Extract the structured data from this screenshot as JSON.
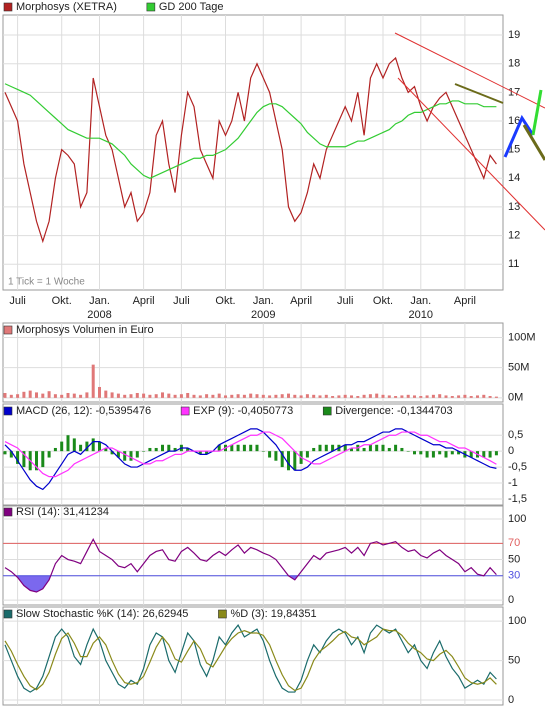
{
  "chart_data": [
    {
      "type": "line",
      "note": "1 Tick = 1 Woche",
      "categories": [
        null,
        null,
        "Juli",
        null,
        null,
        null,
        null,
        null,
        null,
        "Okt.",
        null,
        null,
        null,
        null,
        null,
        "Jan.",
        null,
        null,
        null,
        null,
        null,
        null,
        "April",
        null,
        null,
        null,
        null,
        null,
        "Juli",
        null,
        null,
        null,
        null,
        null,
        null,
        "Okt.",
        null,
        null,
        null,
        null,
        null,
        "Jan.",
        null,
        null,
        null,
        null,
        null,
        "April",
        null,
        null,
        null,
        null,
        null,
        null,
        "Juli",
        null,
        null,
        null,
        null,
        null,
        "Okt.",
        null,
        null,
        null,
        null,
        null,
        "Jan.",
        null,
        null,
        null,
        null,
        null,
        null,
        "April",
        null,
        null,
        null,
        null,
        null
      ],
      "year_labels": [
        "2008",
        "2009",
        "2010"
      ],
      "series": [
        {
          "name": "Morphosys (XETRA)",
          "color": "#b22222",
          "type": "line",
          "values": [
            17.0,
            16.5,
            16.0,
            14.5,
            13.5,
            12.5,
            11.8,
            12.5,
            14.0,
            15.0,
            14.8,
            14.5,
            13.0,
            13.5,
            17.5,
            16.5,
            15.5,
            15.0,
            14.0,
            13.0,
            13.5,
            12.5,
            12.8,
            13.5,
            15.5,
            16.0,
            14.5,
            13.5,
            15.5,
            17.0,
            16.5,
            15.0,
            14.5,
            14.0,
            16.0,
            15.5,
            16.0,
            17.0,
            16.0,
            17.5,
            18.0,
            17.5,
            17.0,
            16.0,
            15.0,
            13.0,
            12.5,
            12.8,
            13.5,
            14.5,
            14.0,
            15.0,
            15.5,
            16.0,
            16.5,
            16.0,
            17.0,
            15.5,
            17.5,
            18.0,
            17.5,
            18.0,
            18.2,
            17.5,
            17.0,
            17.2,
            16.5,
            16.0,
            16.5,
            16.8,
            17.0,
            16.5,
            16.0,
            15.5,
            15.0,
            14.5,
            14.0,
            14.8,
            14.5
          ]
        },
        {
          "name": "GD 200 Tage",
          "color": "#33cc33",
          "type": "line",
          "values": [
            17.3,
            17.2,
            17.1,
            17.0,
            16.9,
            16.7,
            16.5,
            16.3,
            16.1,
            15.9,
            15.7,
            15.6,
            15.5,
            15.4,
            15.4,
            15.4,
            15.3,
            15.2,
            15.0,
            14.8,
            14.5,
            14.3,
            14.1,
            14.0,
            14.1,
            14.2,
            14.3,
            14.4,
            14.5,
            14.6,
            14.7,
            14.7,
            14.8,
            14.8,
            14.9,
            15.0,
            15.2,
            15.4,
            15.7,
            16.0,
            16.3,
            16.5,
            16.6,
            16.6,
            16.5,
            16.3,
            16.1,
            15.9,
            15.6,
            15.4,
            15.2,
            15.1,
            15.1,
            15.1,
            15.1,
            15.2,
            15.3,
            15.3,
            15.4,
            15.5,
            15.6,
            15.7,
            15.9,
            16.0,
            16.2,
            16.3,
            16.3,
            16.4,
            16.5,
            16.6,
            16.6,
            16.7,
            16.7,
            16.6,
            16.6,
            16.6,
            16.5,
            16.5,
            16.5
          ]
        }
      ],
      "ylim": [
        10.1,
        19.7
      ],
      "yticks": [
        11,
        12,
        13,
        14,
        15,
        16,
        17,
        18,
        19
      ],
      "grid": true
    },
    {
      "type": "bar",
      "series": [
        {
          "name": "Morphosys Volumen in Euro",
          "color": "#e07878",
          "type": "bar",
          "values": [
            8,
            5,
            6,
            10,
            12,
            9,
            7,
            11,
            6,
            5,
            8,
            7,
            5,
            9,
            55,
            18,
            12,
            9,
            7,
            5,
            6,
            8,
            7,
            5,
            6,
            9,
            7,
            5,
            6,
            8,
            5,
            4,
            6,
            5,
            7,
            4,
            5,
            6,
            5,
            7,
            6,
            5,
            4,
            5,
            6,
            7,
            5,
            4,
            6,
            5,
            4,
            5,
            3,
            4,
            5,
            4,
            3,
            5,
            6,
            7,
            5,
            4,
            3,
            4,
            5,
            4,
            3,
            4,
            5,
            6,
            4,
            3,
            4,
            5,
            3,
            4,
            5,
            3,
            2
          ]
        }
      ],
      "ylim": [
        -6.9,
        124
      ],
      "yticks": [
        {
          "value": 0,
          "label": "0M"
        },
        {
          "value": 50,
          "label": "50M"
        },
        {
          "value": 100,
          "label": "100M"
        }
      ],
      "grid": true
    },
    {
      "type": "line",
      "series": [
        {
          "name": "MACD (26, 12): -0,5395476",
          "color": "#0000cc",
          "type": "line",
          "values": [
            0.2,
            0.0,
            -0.3,
            -0.6,
            -0.9,
            -1.1,
            -1.2,
            -1.0,
            -0.7,
            -0.4,
            -0.1,
            0.0,
            -0.1,
            0.1,
            0.3,
            0.3,
            0.2,
            0.0,
            -0.2,
            -0.4,
            -0.5,
            -0.5,
            -0.4,
            -0.3,
            -0.2,
            -0.1,
            0.0,
            0.0,
            0.1,
            0.1,
            0.0,
            -0.1,
            -0.1,
            0.0,
            0.2,
            0.3,
            0.4,
            0.5,
            0.6,
            0.7,
            0.7,
            0.6,
            0.4,
            0.2,
            -0.1,
            -0.4,
            -0.6,
            -0.6,
            -0.5,
            -0.3,
            -0.2,
            -0.1,
            0.0,
            0.1,
            0.2,
            0.2,
            0.3,
            0.3,
            0.4,
            0.5,
            0.6,
            0.6,
            0.7,
            0.7,
            0.6,
            0.5,
            0.4,
            0.3,
            0.2,
            0.2,
            0.1,
            0.1,
            0.0,
            -0.1,
            -0.2,
            -0.3,
            -0.4,
            -0.5,
            -0.54
          ]
        },
        {
          "name": "EXP (9): -0,4050773",
          "color": "#ff33ff",
          "type": "line",
          "values": [
            0.3,
            0.2,
            0.1,
            -0.1,
            -0.3,
            -0.5,
            -0.7,
            -0.8,
            -0.8,
            -0.7,
            -0.6,
            -0.4,
            -0.3,
            -0.2,
            -0.1,
            0.0,
            0.1,
            0.1,
            0.0,
            -0.1,
            -0.2,
            -0.3,
            -0.4,
            -0.4,
            -0.3,
            -0.3,
            -0.2,
            -0.1,
            -0.1,
            0.0,
            0.0,
            0.0,
            0.0,
            0.0,
            0.0,
            0.1,
            0.2,
            0.3,
            0.4,
            0.5,
            0.5,
            0.6,
            0.6,
            0.5,
            0.4,
            0.2,
            0.0,
            -0.2,
            -0.3,
            -0.4,
            -0.4,
            -0.3,
            -0.2,
            -0.1,
            0.0,
            0.1,
            0.1,
            0.2,
            0.2,
            0.3,
            0.4,
            0.5,
            0.5,
            0.6,
            0.6,
            0.6,
            0.5,
            0.5,
            0.4,
            0.3,
            0.3,
            0.2,
            0.1,
            0.1,
            0.0,
            -0.1,
            -0.2,
            -0.3,
            -0.41
          ]
        },
        {
          "name": "Divergence: -0,1344703",
          "color": "#1a8a1a",
          "type": "bar",
          "values": [
            -0.1,
            -0.2,
            -0.4,
            -0.5,
            -0.6,
            -0.6,
            -0.5,
            -0.2,
            0.1,
            0.3,
            0.5,
            0.4,
            0.2,
            0.3,
            0.4,
            0.3,
            0.1,
            -0.1,
            -0.2,
            -0.3,
            -0.3,
            -0.2,
            0.0,
            0.1,
            0.1,
            0.2,
            0.2,
            0.1,
            0.2,
            0.1,
            0.0,
            -0.1,
            -0.1,
            0.0,
            0.2,
            0.2,
            0.2,
            0.2,
            0.2,
            0.2,
            0.2,
            0.0,
            -0.2,
            -0.3,
            -0.5,
            -0.6,
            -0.6,
            -0.4,
            -0.2,
            0.1,
            0.2,
            0.2,
            0.2,
            0.2,
            0.2,
            0.1,
            0.2,
            0.1,
            0.2,
            0.2,
            0.2,
            0.1,
            0.2,
            0.1,
            0.0,
            -0.1,
            -0.1,
            -0.2,
            -0.2,
            -0.1,
            -0.2,
            -0.1,
            -0.1,
            -0.2,
            -0.2,
            -0.2,
            -0.2,
            -0.2,
            -0.13
          ]
        }
      ],
      "ylim": [
        -1.69,
        1.48
      ],
      "yticks": [
        {
          "value": -1.5,
          "label": "-1,5"
        },
        -1,
        {
          "value": -0.5,
          "label": "-0,5"
        },
        0,
        {
          "value": 0.5,
          "label": "0,5"
        }
      ],
      "grid": true
    },
    {
      "type": "line",
      "series": [
        {
          "name": "RSI (14): 31,41234",
          "color": "#800080",
          "type": "line",
          "values": [
            40,
            35,
            28,
            18,
            12,
            10,
            14,
            25,
            45,
            55,
            50,
            48,
            45,
            60,
            75,
            60,
            55,
            50,
            42,
            40,
            45,
            35,
            45,
            55,
            60,
            62,
            50,
            48,
            60,
            65,
            58,
            50,
            48,
            55,
            60,
            55,
            62,
            68,
            58,
            65,
            62,
            58,
            55,
            50,
            40,
            30,
            25,
            35,
            45,
            55,
            50,
            58,
            60,
            62,
            65,
            58,
            65,
            55,
            70,
            72,
            68,
            70,
            72,
            65,
            60,
            62,
            55,
            52,
            58,
            62,
            55,
            50,
            45,
            35,
            40,
            32,
            30,
            40,
            31.41234
          ]
        }
      ],
      "reference_lines": [
        {
          "value": 70,
          "color": "#e06060"
        },
        {
          "value": 30,
          "color": "#5050e0",
          "fill": "#7b68ee"
        }
      ],
      "ylim": [
        -6,
        116
      ],
      "yticks": [
        0,
        30,
        50,
        70,
        100
      ],
      "grid": true
    },
    {
      "type": "line",
      "series": [
        {
          "name": "Slow Stochastic %K (14): 26,62945",
          "color": "#1a6b6b",
          "type": "line",
          "values": [
            70,
            50,
            30,
            15,
            10,
            15,
            30,
            55,
            80,
            90,
            80,
            55,
            45,
            70,
            90,
            75,
            50,
            35,
            20,
            15,
            25,
            20,
            40,
            70,
            85,
            80,
            50,
            35,
            60,
            85,
            75,
            45,
            30,
            50,
            80,
            70,
            85,
            95,
            80,
            85,
            90,
            75,
            50,
            30,
            15,
            10,
            10,
            25,
            50,
            70,
            60,
            75,
            85,
            90,
            85,
            70,
            80,
            60,
            85,
            95,
            90,
            85,
            90,
            75,
            60,
            70,
            50,
            40,
            60,
            75,
            55,
            40,
            30,
            15,
            20,
            25,
            20,
            35,
            26.62945
          ]
        },
        {
          "name": "%D (3): 19,84351",
          "color": "#8a8a1a",
          "type": "line",
          "values": [
            75,
            62,
            45,
            30,
            18,
            13,
            20,
            35,
            58,
            78,
            85,
            72,
            55,
            55,
            72,
            80,
            70,
            50,
            33,
            22,
            20,
            22,
            30,
            48,
            67,
            80,
            70,
            52,
            48,
            62,
            75,
            65,
            47,
            42,
            55,
            68,
            78,
            85,
            88,
            85,
            85,
            82,
            70,
            50,
            32,
            18,
            12,
            15,
            30,
            50,
            62,
            68,
            75,
            83,
            87,
            80,
            78,
            70,
            75,
            80,
            90,
            88,
            88,
            82,
            72,
            65,
            60,
            52,
            50,
            58,
            63,
            55,
            42,
            28,
            22,
            20,
            22,
            28,
            19.84351
          ]
        }
      ],
      "ylim": [
        -6.4,
        118
      ],
      "yticks": [
        0,
        50,
        100
      ],
      "grid": true
    }
  ]
}
